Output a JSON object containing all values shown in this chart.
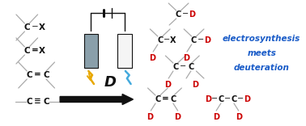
{
  "bg_color": "#ffffff",
  "text_black": "#111111",
  "text_red": "#cc0000",
  "text_blue": "#1a5cc8",
  "bond_color": "#aaaaaa",
  "electrode_gray": "#8a9faa",
  "electrode_white": "#f5f5f5",
  "lightning_yellow": "#e8a800",
  "lightning_blue": "#44aadd",
  "electrosynthesis_text": [
    "electrosynthesis",
    "meets",
    "deuteration"
  ],
  "figsize": [
    3.78,
    1.56
  ],
  "dpi": 100
}
